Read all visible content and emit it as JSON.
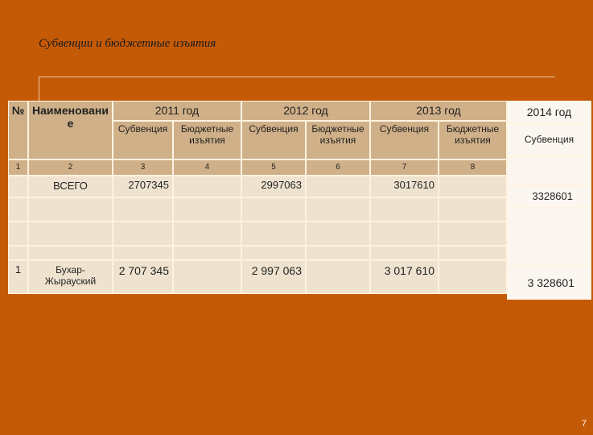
{
  "title": "Субвенции и бюджетные изъятия",
  "table": {
    "header": {
      "no": "№",
      "name": "Наименование",
      "years": [
        "2011 год",
        "2012 год",
        "2013 год",
        "2014 год"
      ],
      "subheaders": [
        "Субвенция",
        "Бюджетные изъятия",
        "Субвенция",
        "Бюджетные изъятия",
        "Субвенция",
        "Бюджетные изъятия",
        "Субвенция"
      ]
    },
    "column_numbers": [
      "1",
      "2",
      "3",
      "4",
      "5",
      "6",
      "7",
      "8"
    ],
    "total_row": {
      "label": "ВСЕГО",
      "values": [
        "2707345",
        "2997063",
        "3017610",
        "3328601"
      ]
    },
    "rows": [
      {
        "no": "1",
        "name": "Бухар-Жырауский",
        "values": [
          "2 707 345",
          "2 997 063",
          "3 017 610",
          "3 328601"
        ]
      }
    ]
  },
  "page_number": "7"
}
